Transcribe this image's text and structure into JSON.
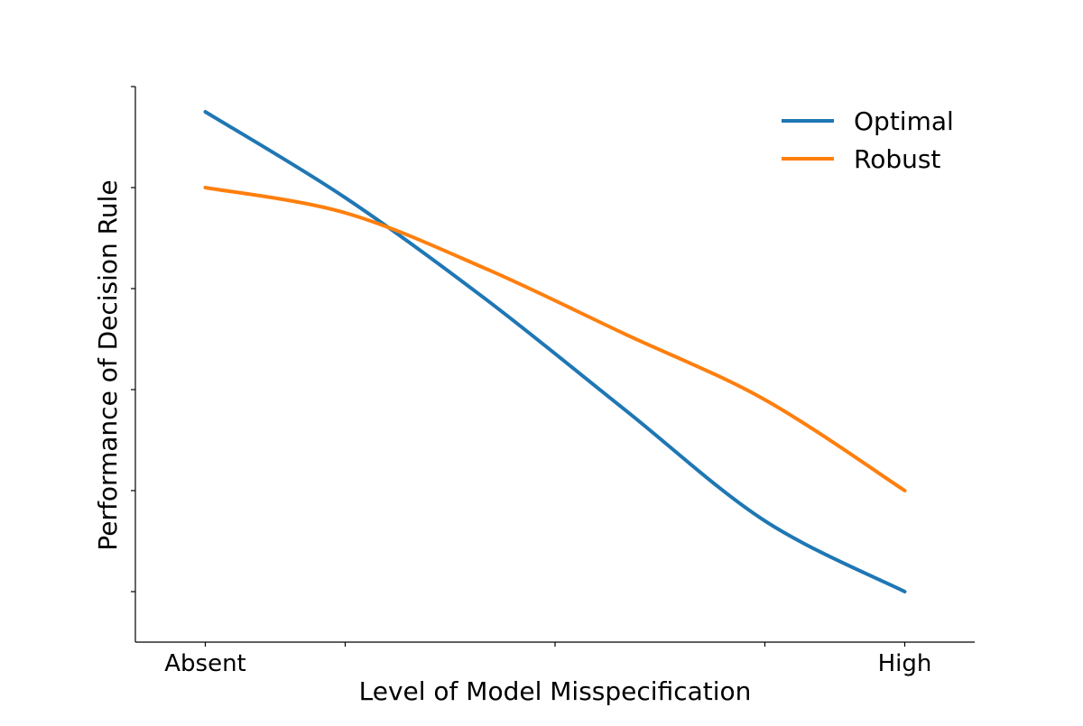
{
  "chart_data": {
    "type": "line",
    "title": "",
    "xlabel": "Level of Model Misspecification",
    "ylabel": "Performance of Decision Rule",
    "x": [
      0,
      0.2,
      0.4,
      0.6,
      0.8,
      1.0
    ],
    "xticks": [
      {
        "value": 0,
        "label": "Absent"
      },
      {
        "value": 0.2,
        "label": ""
      },
      {
        "value": 0.5,
        "label": ""
      },
      {
        "value": 0.8,
        "label": ""
      },
      {
        "value": 1.0,
        "label": "High"
      }
    ],
    "yticks": [
      0,
      0.2,
      0.4,
      0.6,
      0.8,
      1.0
    ],
    "xlim": [
      -0.1,
      1.1
    ],
    "ylim": [
      -0.1,
      1.0
    ],
    "grid": false,
    "legend_position": "top-right",
    "series": [
      {
        "name": "Optimal",
        "color": "#1f77b4",
        "values": [
          0.95,
          0.78,
          0.58,
          0.36,
          0.14,
          0.0
        ]
      },
      {
        "name": "Robust",
        "color": "#ff7f0e",
        "values": [
          0.8,
          0.75,
          0.64,
          0.51,
          0.38,
          0.2
        ]
      }
    ]
  }
}
